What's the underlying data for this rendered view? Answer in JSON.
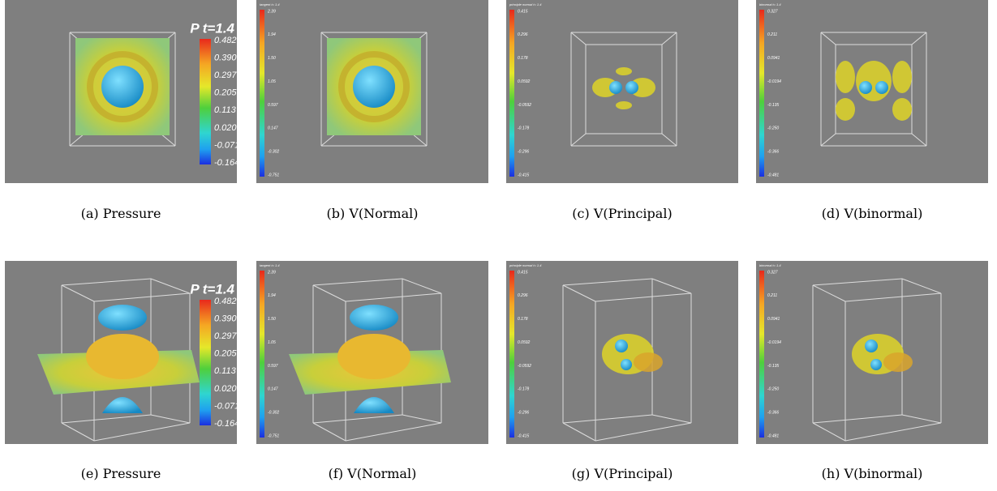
{
  "panels": [
    {
      "caption": "(a) Pressure",
      "colorbar": {
        "title": "P t=1.4",
        "labels": [
          "0.482",
          "0.390",
          "0.297",
          "0.205",
          "0.113",
          "0.0207",
          "-0.0715",
          "-0.164"
        ]
      }
    },
    {
      "caption": "(b) V(Normal)",
      "colorbar": {
        "title": "tangent t= 1.4",
        "labels": [
          "2.39",
          "1.94",
          "1.50",
          "1.05",
          "0.597",
          "0.147",
          "-0.302",
          "-0.751"
        ]
      }
    },
    {
      "caption": "(c) V(Principal)",
      "colorbar": {
        "title": "principle normal t= 1.4",
        "labels": [
          "0.415",
          "0.296",
          "0.178",
          "0.0592",
          "-0.0592",
          "-0.178",
          "-0.296",
          "-0.415"
        ]
      }
    },
    {
      "caption": "(d) V(binormal)",
      "colorbar": {
        "title": "binormal t= 1.4",
        "labels": [
          "0.327",
          "0.211",
          "0.0941",
          "-0.0194",
          "-0.135",
          "-0.250",
          "-0.366",
          "-0.481"
        ]
      }
    },
    {
      "caption": "(e) Pressure",
      "colorbar": {
        "title": "P t=1.4",
        "labels": [
          "0.482",
          "0.390",
          "0.297",
          "0.205",
          "0.113",
          "0.0207",
          "-0.0715",
          "-0.164"
        ]
      }
    },
    {
      "caption": "(f) V(Normal)",
      "colorbar": {
        "title": "tangent t= 1.4",
        "labels": [
          "2.39",
          "1.94",
          "1.50",
          "1.05",
          "0.597",
          "0.147",
          "-0.302",
          "-0.751"
        ]
      }
    },
    {
      "caption": "(g) V(Principal)",
      "colorbar": {
        "title": "principle normal t= 1.4",
        "labels": [
          "0.415",
          "0.296",
          "0.178",
          "0.0592",
          "-0.0592",
          "-0.178",
          "-0.296",
          "-0.415"
        ]
      }
    },
    {
      "caption": "(h) V(binormal)",
      "colorbar": {
        "title": "binormal t= 1.4",
        "labels": [
          "0.327",
          "0.211",
          "0.0941",
          "-0.0194",
          "-0.135",
          "-0.250",
          "-0.366",
          "-0.481"
        ]
      }
    }
  ]
}
